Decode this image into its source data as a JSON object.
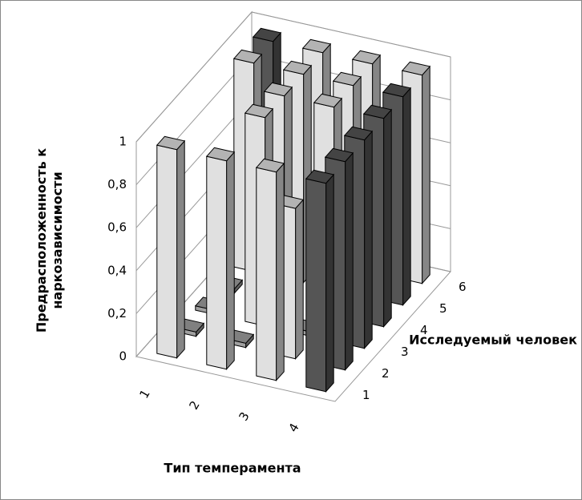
{
  "chart_data": {
    "type": "bar3d",
    "y_label": "Предрасположенность к наркозависимости",
    "x_label": "Тип темперамента",
    "z_label": "Исследуемый человек",
    "categories": [
      "1",
      "2",
      "3",
      "4"
    ],
    "zlim": [
      0,
      1
    ],
    "zticks": [
      0,
      {
        "value": 0.2,
        "label": "0,2"
      },
      {
        "value": 0.4,
        "label": "0,4"
      },
      {
        "value": 0.6,
        "label": "0,6"
      },
      {
        "value": 0.8,
        "label": "0,8"
      },
      1
    ],
    "series": [
      {
        "name": "1",
        "values": [
          0.97,
          0.97,
          0.97,
          0.97
        ],
        "colors": [
          "#e0e0e0",
          "#e0e0e0",
          "#e0e0e0",
          "#555555"
        ]
      },
      {
        "name": "2",
        "values": [
          0.02,
          0.02,
          0.7,
          0.97
        ],
        "colors": [
          "#a0a0a0",
          "#a0a0a0",
          "#e0e0e0",
          "#555555"
        ]
      },
      {
        "name": "3",
        "values": [
          0.02,
          0.97,
          0.02,
          0.97
        ],
        "colors": [
          "#a0a0a0",
          "#e0e0e0",
          "#a0a0a0",
          "#555555"
        ]
      },
      {
        "name": "4",
        "values": [
          0.02,
          0.97,
          0.97,
          0.97
        ],
        "colors": [
          "#a0a0a0",
          "#e0e0e0",
          "#e0e0e0",
          "#555555"
        ]
      },
      {
        "name": "5",
        "values": [
          0.97,
          0.97,
          0.97,
          0.97
        ],
        "colors": [
          "#e0e0e0",
          "#e0e0e0",
          "#e0e0e0",
          "#555555"
        ]
      },
      {
        "name": "6",
        "values": [
          0.97,
          0.97,
          0.97,
          0.97
        ],
        "colors": [
          "#555555",
          "#e0e0e0",
          "#e0e0e0",
          "#e0e0e0"
        ]
      }
    ]
  }
}
